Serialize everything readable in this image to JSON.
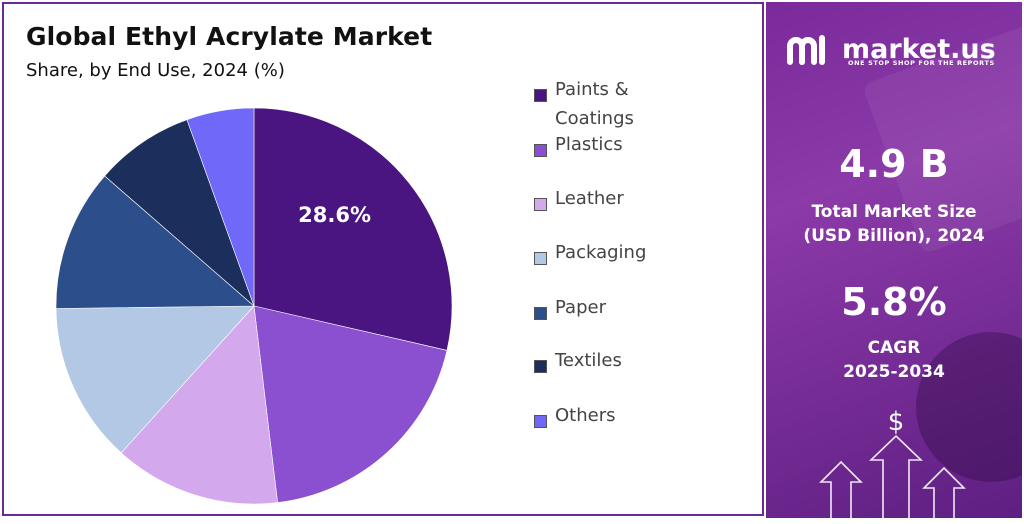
{
  "header": {
    "title": "Global Ethyl Acrylate Market",
    "subtitle": "Share, by End Use, 2024 (%)"
  },
  "chart_data": {
    "type": "pie",
    "categories": [
      "Paints & Coatings",
      "Plastics",
      "Leather",
      "Packaging",
      "Paper",
      "Textiles",
      "Others"
    ],
    "values": [
      28.6,
      19.5,
      13.6,
      13.1,
      11.6,
      8.1,
      5.5
    ],
    "colors": [
      "#4a1580",
      "#8b50d0",
      "#d4a8ec",
      "#b3c8e4",
      "#2c4f8c",
      "#1c2f5c",
      "#7068f8"
    ],
    "data_labels": [
      "28.6%",
      "",
      "",
      "",
      "",
      "",
      ""
    ],
    "legend_position": "right"
  },
  "sidebar": {
    "brand_name": "market.us",
    "brand_tagline": "ONE STOP SHOP FOR THE REPORTS",
    "market_size_value": "4.9 B",
    "market_size_label_line1": "Total Market Size",
    "market_size_label_line2": "(USD Billion), 2024",
    "cagr_value": "5.8%",
    "cagr_label_line1": "CAGR",
    "cagr_label_line2": "2025-2034",
    "currency_symbol": "$"
  }
}
